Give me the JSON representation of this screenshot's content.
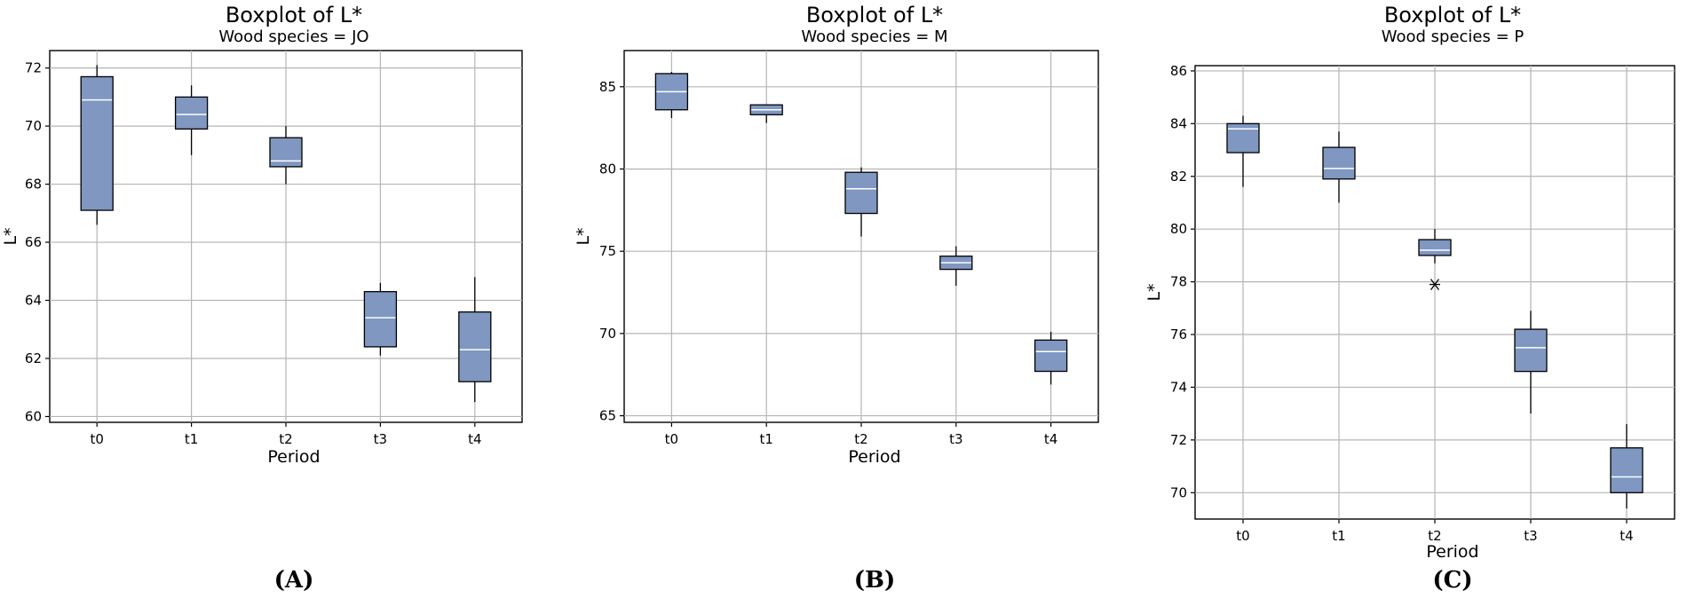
{
  "colors": {
    "box_fill": "#7f97c1",
    "grid": "#b5b5b5",
    "frame": "#000000"
  },
  "chart_data": [
    {
      "type": "boxplot",
      "title": "Boxplot of L*",
      "subtitle": "Wood species = JO",
      "xlabel": "Period",
      "ylabel": "L*",
      "panel_label": "(A)",
      "categories": [
        "t0",
        "t1",
        "t2",
        "t3",
        "t4"
      ],
      "ylim": [
        59.8,
        72.6
      ],
      "yticks": [
        60,
        62,
        64,
        66,
        68,
        70,
        72
      ],
      "grid": true,
      "boxes": [
        {
          "category": "t0",
          "whisker_low": 66.6,
          "q1": 67.1,
          "median": 70.9,
          "q3": 71.7,
          "whisker_high": 72.1,
          "outliers": []
        },
        {
          "category": "t1",
          "whisker_low": 69.0,
          "q1": 69.9,
          "median": 70.4,
          "q3": 71.0,
          "whisker_high": 71.4,
          "outliers": []
        },
        {
          "category": "t2",
          "whisker_low": 68.0,
          "q1": 68.6,
          "median": 68.8,
          "q3": 69.6,
          "whisker_high": 70.0,
          "outliers": []
        },
        {
          "category": "t3",
          "whisker_low": 62.1,
          "q1": 62.4,
          "median": 63.4,
          "q3": 64.3,
          "whisker_high": 64.6,
          "outliers": []
        },
        {
          "category": "t4",
          "whisker_low": 60.5,
          "q1": 61.2,
          "median": 62.3,
          "q3": 63.6,
          "whisker_high": 64.8,
          "outliers": []
        }
      ]
    },
    {
      "type": "boxplot",
      "title": "Boxplot of L*",
      "subtitle": "Wood species = M",
      "xlabel": "Period",
      "ylabel": "L*",
      "panel_label": "(B)",
      "categories": [
        "t0",
        "t1",
        "t2",
        "t3",
        "t4"
      ],
      "ylim": [
        64.6,
        87.2
      ],
      "yticks": [
        65,
        70,
        75,
        80,
        85
      ],
      "grid": true,
      "boxes": [
        {
          "category": "t0",
          "whisker_low": 83.1,
          "q1": 83.6,
          "median": 84.7,
          "q3": 85.8,
          "whisker_high": 85.9,
          "outliers": []
        },
        {
          "category": "t1",
          "whisker_low": 82.8,
          "q1": 83.3,
          "median": 83.6,
          "q3": 83.9,
          "whisker_high": 83.9,
          "outliers": []
        },
        {
          "category": "t2",
          "whisker_low": 75.9,
          "q1": 77.3,
          "median": 78.8,
          "q3": 79.8,
          "whisker_high": 80.1,
          "outliers": []
        },
        {
          "category": "t3",
          "whisker_low": 72.9,
          "q1": 73.9,
          "median": 74.3,
          "q3": 74.7,
          "whisker_high": 75.3,
          "outliers": []
        },
        {
          "category": "t4",
          "whisker_low": 66.9,
          "q1": 67.7,
          "median": 68.9,
          "q3": 69.6,
          "whisker_high": 70.1,
          "outliers": []
        }
      ]
    },
    {
      "type": "boxplot",
      "title": "Boxplot of L*",
      "subtitle": "Wood species = P",
      "xlabel": "Period",
      "ylabel": "L*",
      "panel_label": "(C)",
      "categories": [
        "t0",
        "t1",
        "t2",
        "t3",
        "t4"
      ],
      "ylim": [
        69.0,
        86.2
      ],
      "yticks": [
        70,
        72,
        74,
        76,
        78,
        80,
        82,
        84,
        86
      ],
      "grid": true,
      "boxes": [
        {
          "category": "t0",
          "whisker_low": 81.6,
          "q1": 82.9,
          "median": 83.8,
          "q3": 84.0,
          "whisker_high": 84.3,
          "outliers": []
        },
        {
          "category": "t1",
          "whisker_low": 81.0,
          "q1": 81.9,
          "median": 82.3,
          "q3": 83.1,
          "whisker_high": 83.7,
          "outliers": []
        },
        {
          "category": "t2",
          "whisker_low": 78.7,
          "q1": 79.0,
          "median": 79.2,
          "q3": 79.6,
          "whisker_high": 80.0,
          "outliers": [
            77.9
          ]
        },
        {
          "category": "t3",
          "whisker_low": 73.0,
          "q1": 74.6,
          "median": 75.5,
          "q3": 76.2,
          "whisker_high": 76.9,
          "outliers": []
        },
        {
          "category": "t4",
          "whisker_low": 69.4,
          "q1": 70.0,
          "median": 70.6,
          "q3": 71.7,
          "whisker_high": 72.6,
          "outliers": []
        }
      ]
    }
  ]
}
